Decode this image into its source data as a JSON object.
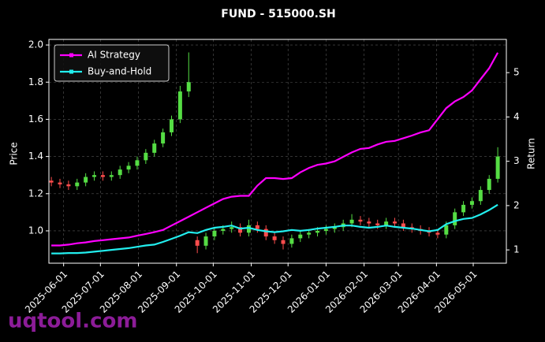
{
  "chart_data": {
    "type": "candlestick",
    "title": "FUND - 515000.SH",
    "ylabel": "Price",
    "y2label": "Return",
    "watermark": "uqtool.com",
    "x": [
      "2025-05-22",
      "2025-05-29",
      "2025-06-05",
      "2025-06-12",
      "2025-06-19",
      "2025-06-26",
      "2025-07-03",
      "2025-07-10",
      "2025-07-17",
      "2025-07-24",
      "2025-07-31",
      "2025-08-07",
      "2025-08-14",
      "2025-08-21",
      "2025-08-28",
      "2025-09-04",
      "2025-09-11",
      "2025-09-18",
      "2025-09-25",
      "2025-10-02",
      "2025-10-09",
      "2025-10-16",
      "2025-10-23",
      "2025-10-30",
      "2025-11-06",
      "2025-11-13",
      "2025-11-20",
      "2025-11-27",
      "2025-12-04",
      "2025-12-11",
      "2025-12-18",
      "2025-12-25",
      "2026-01-01",
      "2026-01-08",
      "2026-01-15",
      "2026-01-22",
      "2026-01-29",
      "2026-02-05",
      "2026-02-12",
      "2026-02-19",
      "2026-02-26",
      "2026-03-05",
      "2026-03-12",
      "2026-03-19",
      "2026-03-26",
      "2026-04-02",
      "2026-04-09",
      "2026-04-16",
      "2026-04-23",
      "2026-04-30",
      "2026-05-07",
      "2026-05-14",
      "2026-05-21"
    ],
    "candles": {
      "up_color": "#55dd44",
      "down_color": "#ff4d4d",
      "open": [
        1.27,
        1.26,
        1.25,
        1.24,
        1.26,
        1.29,
        1.3,
        1.29,
        1.3,
        1.33,
        1.35,
        1.38,
        1.42,
        1.47,
        1.53,
        1.6,
        1.75,
        0.95,
        0.92,
        0.97,
        1.0,
        1.01,
        1.02,
        0.99,
        1.03,
        1.01,
        0.97,
        0.95,
        0.93,
        0.96,
        0.98,
        0.99,
        1.0,
        1.01,
        1.02,
        1.04,
        1.06,
        1.05,
        1.04,
        1.03,
        1.05,
        1.04,
        1.02,
        1.01,
        1.0,
        0.99,
        0.98,
        1.03,
        1.1,
        1.14,
        1.16,
        1.22,
        1.28
      ],
      "high": [
        1.29,
        1.28,
        1.27,
        1.28,
        1.31,
        1.32,
        1.32,
        1.32,
        1.35,
        1.37,
        1.4,
        1.44,
        1.49,
        1.55,
        1.62,
        1.78,
        1.96,
        0.97,
        0.99,
        1.02,
        1.03,
        1.05,
        1.04,
        1.06,
        1.05,
        1.03,
        0.99,
        0.97,
        0.98,
        1.0,
        1.01,
        1.02,
        1.03,
        1.04,
        1.06,
        1.09,
        1.08,
        1.07,
        1.06,
        1.07,
        1.07,
        1.06,
        1.04,
        1.03,
        1.02,
        1.01,
        1.05,
        1.12,
        1.16,
        1.18,
        1.24,
        1.3,
        1.45
      ],
      "low": [
        1.24,
        1.23,
        1.22,
        1.22,
        1.24,
        1.27,
        1.27,
        1.27,
        1.28,
        1.31,
        1.33,
        1.36,
        1.4,
        1.45,
        1.51,
        1.58,
        1.72,
        0.88,
        0.9,
        0.95,
        0.98,
        0.99,
        0.97,
        0.97,
        0.99,
        0.95,
        0.93,
        0.9,
        0.91,
        0.94,
        0.96,
        0.97,
        0.98,
        0.99,
        1.0,
        1.02,
        1.03,
        1.02,
        1.01,
        1.01,
        1.02,
        1.0,
        0.99,
        0.98,
        0.97,
        0.96,
        0.96,
        1.01,
        1.08,
        1.12,
        1.14,
        1.2,
        1.26
      ],
      "close": [
        1.26,
        1.25,
        1.24,
        1.26,
        1.29,
        1.3,
        1.29,
        1.3,
        1.33,
        1.35,
        1.38,
        1.42,
        1.47,
        1.53,
        1.6,
        1.75,
        1.8,
        0.92,
        0.97,
        1.0,
        1.01,
        1.02,
        0.99,
        1.03,
        1.01,
        0.97,
        0.95,
        0.93,
        0.96,
        0.98,
        0.99,
        1.0,
        1.01,
        1.02,
        1.04,
        1.06,
        1.05,
        1.04,
        1.03,
        1.05,
        1.04,
        1.02,
        1.01,
        1.0,
        0.99,
        0.98,
        1.03,
        1.1,
        1.14,
        1.16,
        1.22,
        1.28,
        1.4
      ]
    },
    "series": [
      {
        "name": "AI Strategy",
        "color": "#ff00ff",
        "axis": "y2",
        "values": [
          1.1,
          1.1,
          1.12,
          1.15,
          1.17,
          1.2,
          1.22,
          1.24,
          1.26,
          1.28,
          1.32,
          1.36,
          1.4,
          1.45,
          1.55,
          1.65,
          1.75,
          1.85,
          1.95,
          2.05,
          2.15,
          2.2,
          2.22,
          2.22,
          2.45,
          2.62,
          2.62,
          2.6,
          2.62,
          2.75,
          2.85,
          2.92,
          2.95,
          3.0,
          3.1,
          3.2,
          3.28,
          3.3,
          3.38,
          3.44,
          3.46,
          3.52,
          3.58,
          3.65,
          3.7,
          3.95,
          4.2,
          4.35,
          4.45,
          4.6,
          4.85,
          5.1,
          5.45
        ]
      },
      {
        "name": "Buy-and-Hold",
        "color": "#22eeee",
        "axis": "y2",
        "values": [
          0.92,
          0.92,
          0.93,
          0.93,
          0.94,
          0.96,
          0.98,
          1.0,
          1.02,
          1.04,
          1.07,
          1.1,
          1.12,
          1.18,
          1.25,
          1.32,
          1.4,
          1.38,
          1.45,
          1.5,
          1.52,
          1.55,
          1.48,
          1.5,
          1.45,
          1.42,
          1.4,
          1.42,
          1.45,
          1.43,
          1.45,
          1.48,
          1.5,
          1.52,
          1.55,
          1.55,
          1.52,
          1.5,
          1.52,
          1.55,
          1.52,
          1.5,
          1.48,
          1.45,
          1.42,
          1.45,
          1.58,
          1.65,
          1.7,
          1.72,
          1.8,
          1.9,
          2.02
        ]
      }
    ],
    "xlim": [
      "2025-05-20",
      "2026-05-28"
    ],
    "xticks": [
      "2025-06-01",
      "2025-07-01",
      "2025-08-01",
      "2025-09-01",
      "2025-10-01",
      "2025-11-01",
      "2025-12-01",
      "2026-01-01",
      "2026-02-01",
      "2026-03-01",
      "2026-04-01",
      "2026-05-01"
    ],
    "ylim": [
      0.826,
      2.03
    ],
    "yticks": [
      {
        "value": 1.0,
        "label": "1.0"
      },
      {
        "value": 1.2,
        "label": "1.2"
      },
      {
        "value": 1.4,
        "label": "1.4"
      },
      {
        "value": 1.6,
        "label": "1.6"
      },
      {
        "value": 1.8,
        "label": "1.8"
      },
      {
        "value": 2.0,
        "label": "2.0"
      }
    ],
    "y2lim": [
      0.7,
      5.75
    ],
    "y2ticks": [
      1,
      2,
      3,
      4,
      5
    ],
    "grid": true,
    "legend": "upper left"
  }
}
